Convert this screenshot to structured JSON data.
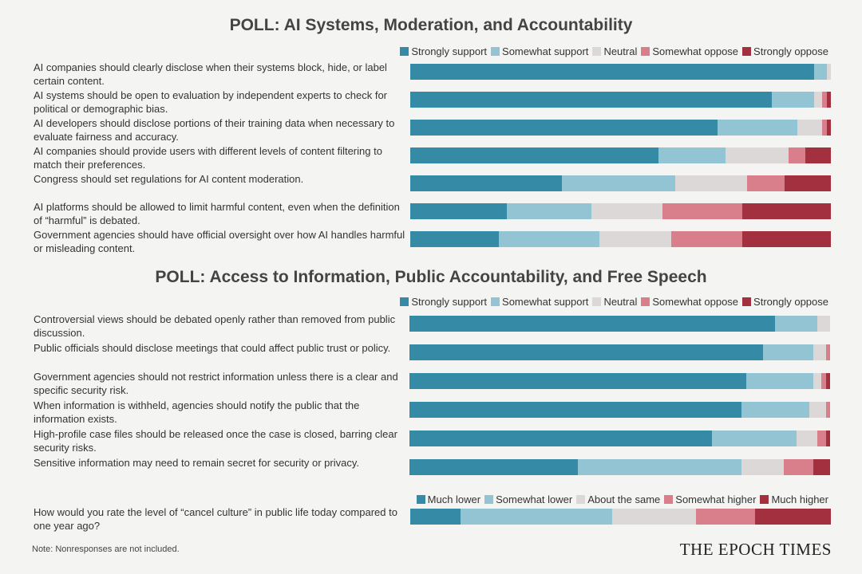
{
  "colors": [
    "#358aa6",
    "#93c4d4",
    "#dcd8d8",
    "#d97f8c",
    "#a3303f"
  ],
  "note": "Note: Nonresponses are not included.",
  "logo": "THE EPOCH TIMES",
  "chart_data": [
    {
      "type": "bar",
      "orientation": "horizontal-stacked-100",
      "title": "POLL: AI Systems, Moderation, and Accountability",
      "legend": [
        "Strongly support",
        "Somewhat support",
        "Neutral",
        "Somewhat oppose",
        "Strongly oppose"
      ],
      "legend_placement": "top-right",
      "categories": [
        "AI companies should clearly disclose when their systems block, hide, or label certain content.",
        "AI systems should be open to evaluation by independent experts to check for political or demographic bias.",
        "AI developers should disclose portions of their training data when necessary to evaluate fairness and accuracy.",
        "AI companies should provide users with different levels of content filtering to match their preferences.",
        "Congress should set regulations for AI content moderation.",
        "AI platforms should be allowed to limit harmful content, even when the definition of “harmful” is debated.",
        "Government agencies should have official oversight over how AI handles harmful or misleading content."
      ],
      "values": [
        [
          96,
          3,
          1,
          0,
          0
        ],
        [
          86,
          10,
          2,
          1,
          1
        ],
        [
          73,
          19,
          6,
          1,
          1
        ],
        [
          59,
          16,
          15,
          4,
          6
        ],
        [
          36,
          27,
          17,
          9,
          11
        ],
        [
          23,
          20,
          17,
          19,
          21
        ],
        [
          21,
          24,
          17,
          17,
          21
        ]
      ]
    },
    {
      "type": "bar",
      "orientation": "horizontal-stacked-100",
      "title": "POLL: Access to Information, Public Accountability, and Free Speech",
      "legend": [
        "Strongly support",
        "Somewhat support",
        "Neutral",
        "Somewhat oppose",
        "Strongly oppose"
      ],
      "legend_placement": "top-right",
      "categories": [
        "Controversial views should be debated openly rather than removed from public discussion.",
        "Public officials should disclose meetings that could affect public trust or policy.",
        "Government agencies should not restrict information unless there is a clear and specific security risk.",
        "When information is withheld, agencies should notify the public that the information exists.",
        "High-profile case files should be released once the case is closed, barring clear security risks.",
        "Sensitive information may need to remain secret for security or privacy."
      ],
      "values": [
        [
          87,
          10,
          3,
          0,
          0
        ],
        [
          84,
          12,
          3,
          1,
          0
        ],
        [
          80,
          16,
          2,
          1,
          1
        ],
        [
          79,
          16,
          4,
          1,
          0
        ],
        [
          72,
          20,
          5,
          2,
          1
        ],
        [
          40,
          39,
          10,
          7,
          4
        ]
      ]
    },
    {
      "type": "bar",
      "orientation": "horizontal-stacked-100",
      "title": "",
      "legend": [
        "Much lower",
        "Somewhat lower",
        "About the same",
        "Somewhat higher",
        "Much higher"
      ],
      "legend_placement": "top-right",
      "categories": [
        "How would you rate the level of “cancel culture” in public life today compared to one year ago?"
      ],
      "values": [
        [
          12,
          36,
          20,
          14,
          18
        ]
      ]
    }
  ]
}
